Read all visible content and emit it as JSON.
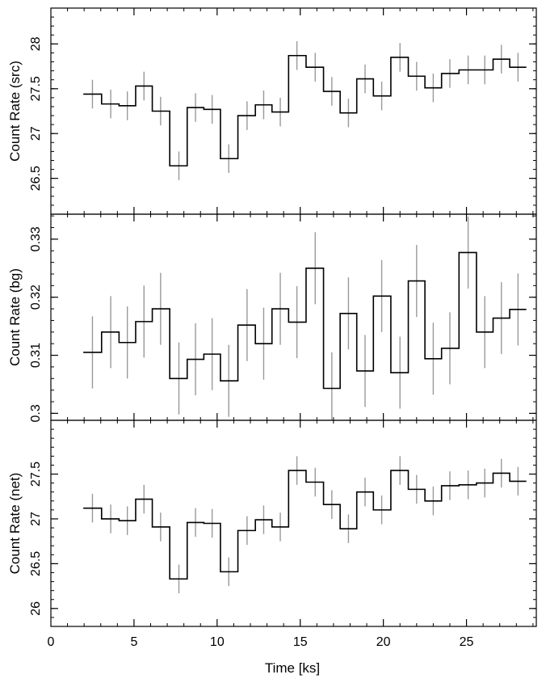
{
  "chart_data": [
    {
      "type": "line",
      "style": "step",
      "ylabel": "Count Rate (src)",
      "ylim": [
        26.1,
        28.4
      ],
      "yticks_major": [
        26.5,
        27,
        27.5,
        28
      ],
      "ytick_labels": [
        "26.5",
        "27",
        "27.5",
        "28"
      ],
      "yminor_step": 0.1,
      "line_color": "#000000",
      "error_color": "#999999",
      "x": [
        2.5,
        3.6,
        4.6,
        5.6,
        6.6,
        7.7,
        8.7,
        9.7,
        10.7,
        11.8,
        12.8,
        13.8,
        14.8,
        15.9,
        16.9,
        17.9,
        18.9,
        19.9,
        21.0,
        22.0,
        23.0,
        24.0,
        25.1,
        26.1,
        27.1,
        28.1
      ],
      "values": [
        27.44,
        27.33,
        27.31,
        27.53,
        27.25,
        26.64,
        27.29,
        27.27,
        26.72,
        27.2,
        27.32,
        27.24,
        27.87,
        27.74,
        27.47,
        27.23,
        27.61,
        27.42,
        27.85,
        27.64,
        27.51,
        27.67,
        27.71,
        27.71,
        27.83,
        27.74
      ],
      "errors": [
        0.16,
        0.16,
        0.16,
        0.16,
        0.16,
        0.16,
        0.16,
        0.16,
        0.16,
        0.16,
        0.16,
        0.16,
        0.16,
        0.16,
        0.16,
        0.16,
        0.16,
        0.16,
        0.16,
        0.16,
        0.16,
        0.16,
        0.16,
        0.16,
        0.16,
        0.16
      ]
    },
    {
      "type": "line",
      "style": "step",
      "ylabel": "Count Rate (bg)",
      "ylim": [
        0.2988,
        0.3343
      ],
      "yticks_major": [
        0.3,
        0.31,
        0.32,
        0.33
      ],
      "ytick_labels": [
        "0.3",
        "0.31",
        "0.32",
        "0.33"
      ],
      "yminor_step": 0.002,
      "line_color": "#000000",
      "error_color": "#999999",
      "x": [
        2.5,
        3.6,
        4.6,
        5.6,
        6.6,
        7.7,
        8.7,
        9.7,
        10.7,
        11.8,
        12.8,
        13.8,
        14.8,
        15.9,
        16.9,
        17.9,
        18.9,
        19.9,
        21.0,
        22.0,
        23.0,
        24.0,
        25.1,
        26.1,
        27.1,
        28.1
      ],
      "values": [
        0.3105,
        0.314,
        0.3122,
        0.3158,
        0.318,
        0.306,
        0.3093,
        0.3102,
        0.3056,
        0.3152,
        0.312,
        0.318,
        0.3157,
        0.325,
        0.3043,
        0.3172,
        0.3073,
        0.3202,
        0.307,
        0.3228,
        0.3094,
        0.3112,
        0.3277,
        0.314,
        0.3164,
        0.3179
      ],
      "errors": [
        0.0062,
        0.0062,
        0.0062,
        0.0062,
        0.0062,
        0.0062,
        0.0062,
        0.0062,
        0.0062,
        0.0062,
        0.0062,
        0.0062,
        0.0062,
        0.0062,
        0.0062,
        0.0062,
        0.0062,
        0.0062,
        0.0062,
        0.0062,
        0.0062,
        0.0062,
        0.0062,
        0.0062,
        0.0062,
        0.0062
      ]
    },
    {
      "type": "line",
      "style": "step",
      "ylabel": "Count Rate (net)",
      "xlabel": "Time [ks]",
      "xlim": [
        0,
        29.2
      ],
      "xticks_major": [
        0,
        5,
        10,
        15,
        20,
        25
      ],
      "xtick_labels": [
        "0",
        "5",
        "10",
        "15",
        "20",
        "25"
      ],
      "xminor_step": 1,
      "ylim": [
        25.8,
        28.1
      ],
      "yticks_major": [
        26,
        26.5,
        27,
        27.5
      ],
      "ytick_labels": [
        "26",
        "26.5",
        "27",
        "27.5"
      ],
      "yminor_step": 0.1,
      "line_color": "#000000",
      "error_color": "#999999",
      "x": [
        2.5,
        3.6,
        4.6,
        5.6,
        6.6,
        7.7,
        8.7,
        9.7,
        10.7,
        11.8,
        12.8,
        13.8,
        14.8,
        15.9,
        16.9,
        17.9,
        18.9,
        19.9,
        21.0,
        22.0,
        23.0,
        24.0,
        25.1,
        26.1,
        27.1,
        28.1
      ],
      "values": [
        27.12,
        27.0,
        26.98,
        27.22,
        26.91,
        26.33,
        26.96,
        26.95,
        26.41,
        26.87,
        26.99,
        26.91,
        27.54,
        27.41,
        27.16,
        26.89,
        27.3,
        27.1,
        27.54,
        27.33,
        27.2,
        27.37,
        27.38,
        27.4,
        27.51,
        27.42
      ],
      "errors": [
        0.16,
        0.16,
        0.16,
        0.16,
        0.16,
        0.16,
        0.16,
        0.16,
        0.16,
        0.16,
        0.16,
        0.16,
        0.16,
        0.16,
        0.16,
        0.16,
        0.16,
        0.16,
        0.16,
        0.16,
        0.16,
        0.16,
        0.16,
        0.16,
        0.16,
        0.16
      ]
    }
  ]
}
